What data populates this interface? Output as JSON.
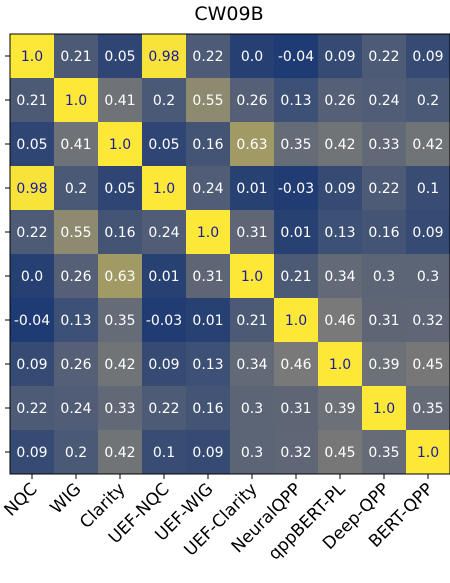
{
  "chart_data": {
    "type": "heatmap",
    "title": "CW09B",
    "xlabel": "",
    "ylabel": "",
    "x_labels": [
      "NQC",
      "WIG",
      "Clarity",
      "UEF-NQC",
      "UEF-WIG",
      "UEF-Clarity",
      "NeuralQPP",
      "qppBERT-PL",
      "Deep-QPP",
      "BERT-QPP"
    ],
    "y_labels": [],
    "value_labels": [
      [
        "1.0",
        "0.21",
        "0.05",
        "0.98",
        "0.22",
        "0.0",
        "-0.04",
        "0.09",
        "0.22",
        "0.09"
      ],
      [
        "0.21",
        "1.0",
        "0.41",
        "0.2",
        "0.55",
        "0.26",
        "0.13",
        "0.26",
        "0.24",
        "0.2"
      ],
      [
        "0.05",
        "0.41",
        "1.0",
        "0.05",
        "0.16",
        "0.63",
        "0.35",
        "0.42",
        "0.33",
        "0.42"
      ],
      [
        "0.98",
        "0.2",
        "0.05",
        "1.0",
        "0.24",
        "0.01",
        "-0.03",
        "0.09",
        "0.22",
        "0.1"
      ],
      [
        "0.22",
        "0.55",
        "0.16",
        "0.24",
        "1.0",
        "0.31",
        "0.01",
        "0.13",
        "0.16",
        "0.09"
      ],
      [
        "0.0",
        "0.26",
        "0.63",
        "0.01",
        "0.31",
        "1.0",
        "0.21",
        "0.34",
        "0.3",
        "0.3"
      ],
      [
        "-0.04",
        "0.13",
        "0.35",
        "-0.03",
        "0.01",
        "0.21",
        "1.0",
        "0.46",
        "0.31",
        "0.32"
      ],
      [
        "0.09",
        "0.26",
        "0.42",
        "0.09",
        "0.13",
        "0.34",
        "0.46",
        "1.0",
        "0.39",
        "0.45"
      ],
      [
        "0.22",
        "0.24",
        "0.33",
        "0.22",
        "0.16",
        "0.3",
        "0.31",
        "0.39",
        "1.0",
        "0.35"
      ],
      [
        "0.09",
        "0.2",
        "0.42",
        "0.1",
        "0.09",
        "0.3",
        "0.32",
        "0.45",
        "0.35",
        "1.0"
      ]
    ],
    "colormap": "cividis",
    "vmin": -0.04,
    "vmax": 1.0,
    "grid": false,
    "legend": "none"
  },
  "colors": {
    "low": "#1f3b73",
    "mid": "#7c7b78",
    "high": "#fde737",
    "text_light": "#ffffff",
    "text_dark": "#1a1aa6",
    "axis": "#000000"
  }
}
